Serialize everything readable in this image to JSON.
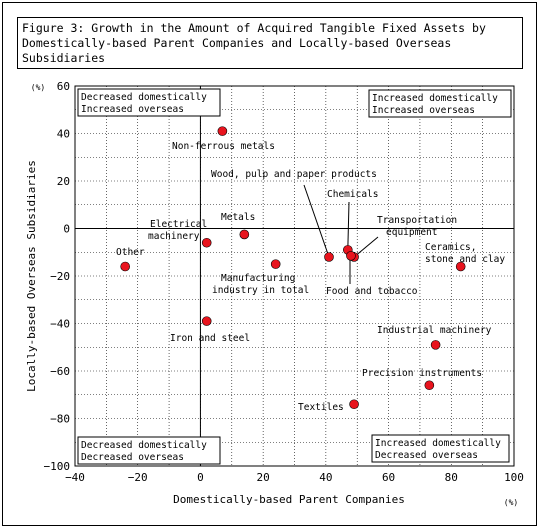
{
  "chart_data": {
    "type": "scatter",
    "title": "Figure 3: Growth in the Amount of Acquired Tangible Fixed Assets by Domestically-based Parent Companies and Locally-based Overseas Subsidiaries",
    "xlabel": "Domestically-based Parent Companies",
    "ylabel": "Locally-based Overseas Subsidiaries",
    "x_unit": "(%)",
    "y_unit": "(%)",
    "xlim": [
      -40,
      100
    ],
    "ylim": [
      -100,
      60
    ],
    "x_ticks": [
      "−40",
      "−20",
      "0",
      "20",
      "40",
      "60",
      "80",
      "100"
    ],
    "y_ticks": [
      "60",
      "40",
      "20",
      "0",
      "−20",
      "−40",
      "−60",
      "−80",
      "−100"
    ],
    "grid": true,
    "point_color": "#e8141e",
    "points": [
      {
        "label": "Non-ferrous metals",
        "x": 7,
        "y": 41
      },
      {
        "label": "Wood, pulp and paper products",
        "x": 41,
        "y": -12
      },
      {
        "label": "Chemicals",
        "x": 47,
        "y": -9
      },
      {
        "label": "Transportation equipment",
        "x": 49,
        "y": -12
      },
      {
        "label": "Metals",
        "x": 14,
        "y": -2.5
      },
      {
        "label": "Electrical machinery",
        "x": 2,
        "y": -6
      },
      {
        "label": "Other",
        "x": -24,
        "y": -16
      },
      {
        "label": "Ceramics, stone and clay",
        "x": 83,
        "y": -16
      },
      {
        "label": "Manufacturing industry in total",
        "x": 24,
        "y": -15
      },
      {
        "label": "Food and tobacco",
        "x": 48,
        "y": -11.5
      },
      {
        "label": "Iron and steel",
        "x": 2,
        "y": -39
      },
      {
        "label": "Industrial machinery",
        "x": 75,
        "y": -49
      },
      {
        "label": "Precision instruments",
        "x": 73,
        "y": -66
      },
      {
        "label": "Textiles",
        "x": 49,
        "y": -74
      }
    ],
    "quadrants": {
      "top_left": [
        "Decreased domestically",
        "Increased overseas"
      ],
      "top_right": [
        "Increased domestically",
        "Increased overseas"
      ],
      "bottom_left": [
        "Decreased domestically",
        "Decreased overseas"
      ],
      "bottom_right": [
        "Increased domestically",
        "Decreased overseas"
      ]
    }
  }
}
